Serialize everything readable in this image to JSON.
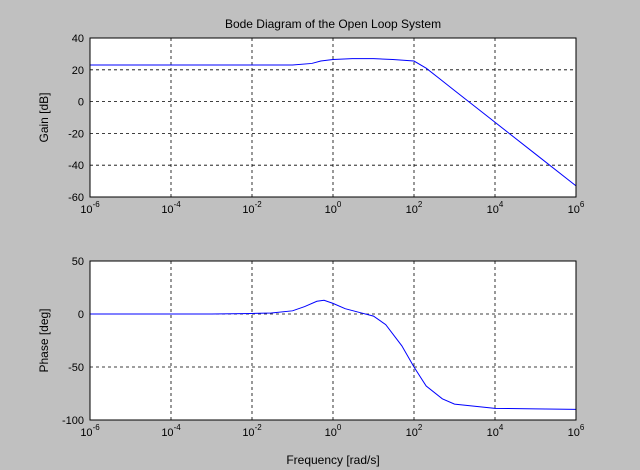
{
  "figure": {
    "background": "#c0c0c0",
    "axes_background": "#ffffff",
    "line_color": "#0000ff",
    "grid_color": "#000000"
  },
  "chart_data": [
    {
      "type": "line",
      "title": "Bode Diagram of the Open Loop System",
      "xlabel": "",
      "ylabel": "Gain [dB]",
      "xscale": "log",
      "xlim": [
        1e-06,
        1000000.0
      ],
      "ylim": [
        -60,
        40
      ],
      "grid": true,
      "x_ticks": [
        -6,
        -4,
        -2,
        0,
        2,
        4,
        6
      ],
      "y_ticks": [
        -60,
        -40,
        -20,
        0,
        20,
        40
      ],
      "series": [
        {
          "x": [
            1e-06,
            0.0001,
            0.01,
            0.1,
            0.3,
            0.5,
            1,
            3,
            10,
            30,
            100,
            200,
            400,
            1000,
            10000.0,
            100000.0,
            1000000.0
          ],
          "y": [
            23,
            23,
            23,
            23,
            24,
            25.5,
            26.5,
            27,
            27,
            26.5,
            25.5,
            21,
            15,
            7,
            -13,
            -33,
            -53
          ]
        }
      ]
    },
    {
      "type": "line",
      "title": "",
      "xlabel": "Frequency [rad/s]",
      "ylabel": "Phase [deg]",
      "xscale": "log",
      "xlim": [
        1e-06,
        1000000.0
      ],
      "ylim": [
        -100,
        50
      ],
      "grid": true,
      "x_ticks": [
        -6,
        -4,
        -2,
        0,
        2,
        4,
        6
      ],
      "y_ticks": [
        -100,
        -50,
        0,
        50
      ],
      "series": [
        {
          "x": [
            1e-06,
            0.001,
            0.01,
            0.03,
            0.1,
            0.2,
            0.4,
            0.6,
            1,
            2,
            5,
            10,
            20,
            50,
            100,
            200,
            500,
            1000,
            10000.0,
            100000.0,
            1000000.0
          ],
          "y": [
            0,
            0,
            0.5,
            1,
            3,
            7,
            12,
            13,
            10,
            5,
            1,
            -2,
            -10,
            -30,
            -50,
            -68,
            -80,
            -85,
            -89,
            -89.5,
            -90
          ]
        }
      ]
    }
  ]
}
